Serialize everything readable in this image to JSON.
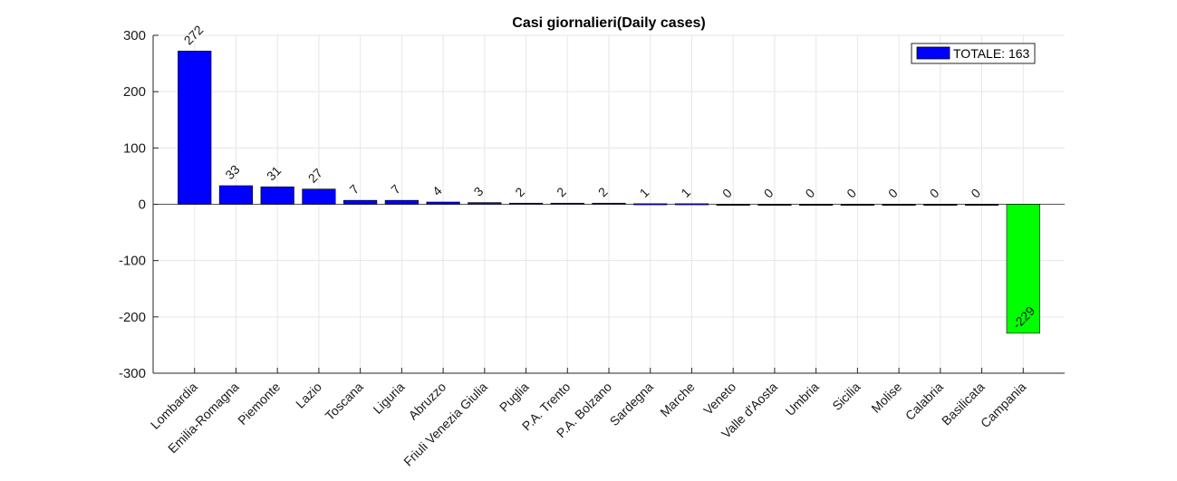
{
  "chart_data": {
    "type": "bar",
    "title": "Casi giornalieri(Daily cases)",
    "xlabel": "",
    "ylabel": "",
    "ylim": [
      -300,
      300
    ],
    "yticks": [
      -300,
      -200,
      -100,
      0,
      100,
      200,
      300
    ],
    "grid": true,
    "legend_position": "top-right",
    "legend": [
      "TOTALE: 163"
    ],
    "colors": {
      "positive": "#0000ff",
      "negative": "#00ff00",
      "zero": "#000000"
    },
    "categories": [
      "Lombardia",
      "Emilia-Romagna",
      "Piemonte",
      "Lazio",
      "Toscana",
      "Liguria",
      "Abruzzo",
      "Friuli Venezia Giulia",
      "Puglia",
      "P.A. Trento",
      "P.A. Bolzano",
      "Sardegna",
      "Marche",
      "Veneto",
      "Valle d'Aosta",
      "Umbria",
      "Sicilia",
      "Molise",
      "Calabria",
      "Basilicata",
      "Campania"
    ],
    "values": [
      272,
      33,
      31,
      27,
      7,
      7,
      4,
      3,
      2,
      2,
      2,
      1,
      1,
      0,
      0,
      0,
      0,
      0,
      0,
      0,
      -229
    ]
  }
}
